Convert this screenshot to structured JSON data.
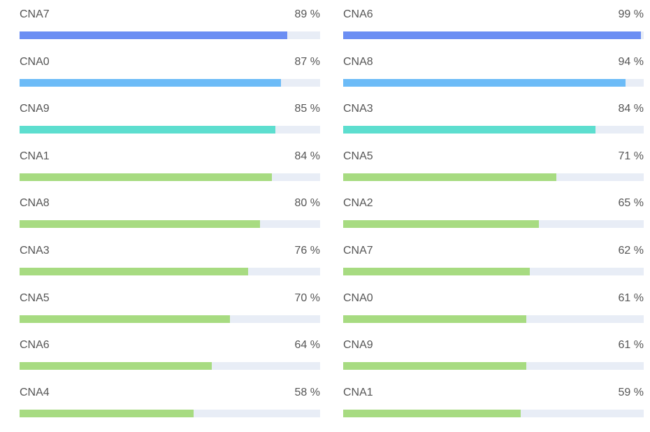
{
  "colors": {
    "track": "#e8edf6",
    "text": "#555555"
  },
  "chart_data": [
    {
      "type": "bar",
      "orientation": "horizontal",
      "xlim": [
        0,
        100
      ],
      "categories": [
        "CNA7",
        "CNA0",
        "CNA9",
        "CNA1",
        "CNA8",
        "CNA3",
        "CNA5",
        "CNA6",
        "CNA4"
      ],
      "values": [
        89,
        87,
        85,
        84,
        80,
        76,
        70,
        64,
        58
      ],
      "value_labels": [
        "89 %",
        "87 %",
        "85 %",
        "84 %",
        "80 %",
        "76 %",
        "70 %",
        "64 %",
        "58 %"
      ],
      "bar_colors": [
        "#6b8ef3",
        "#6cbbf7",
        "#5ddecf",
        "#a7db81",
        "#a7db81",
        "#a7db81",
        "#a7db81",
        "#a7db81",
        "#a7db81"
      ]
    },
    {
      "type": "bar",
      "orientation": "horizontal",
      "xlim": [
        0,
        100
      ],
      "categories": [
        "CNA6",
        "CNA8",
        "CNA3",
        "CNA5",
        "CNA2",
        "CNA7",
        "CNA0",
        "CNA9",
        "CNA1"
      ],
      "values": [
        99,
        94,
        84,
        71,
        65,
        62,
        61,
        61,
        59
      ],
      "value_labels": [
        "99 %",
        "94 %",
        "84 %",
        "71 %",
        "65 %",
        "62 %",
        "61 %",
        "61 %",
        "59 %"
      ],
      "bar_colors": [
        "#6b8ef3",
        "#6cbbf7",
        "#5ddecf",
        "#a7db81",
        "#a7db81",
        "#a7db81",
        "#a7db81",
        "#a7db81",
        "#a7db81"
      ]
    }
  ]
}
